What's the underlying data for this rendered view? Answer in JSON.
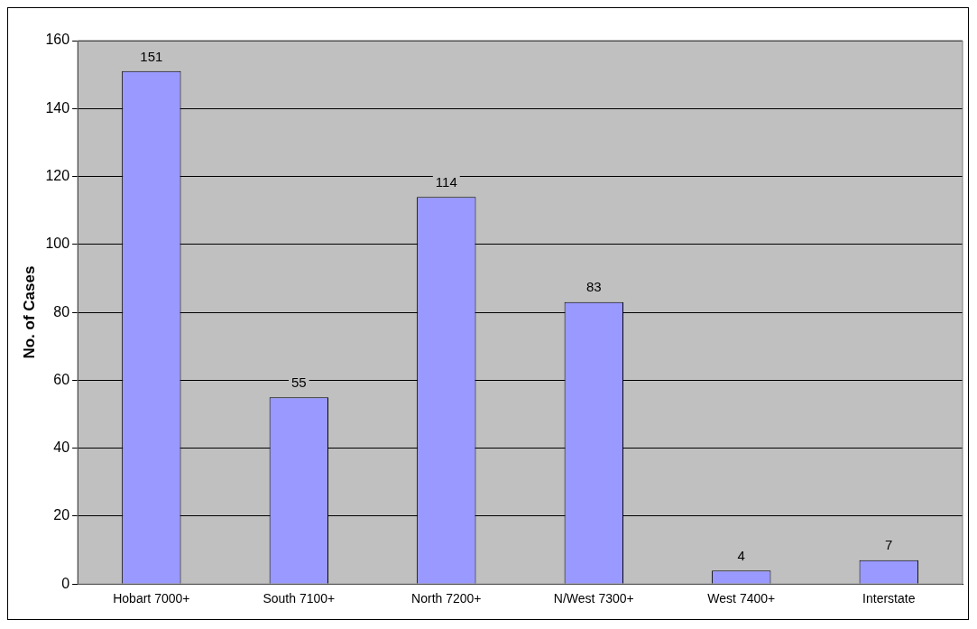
{
  "chart_data": {
    "type": "bar",
    "ylabel": "No. of Cases",
    "categories": [
      "Hobart 7000+",
      "South 7100+",
      "North 7200+",
      "N/West 7300+",
      "West 7400+",
      "Interstate"
    ],
    "values": [
      151,
      55,
      114,
      83,
      4,
      7
    ],
    "color": "#9999ff",
    "ylim": [
      0,
      160
    ],
    "yticks": [
      0,
      20,
      40,
      60,
      80,
      100,
      120,
      140,
      160
    ],
    "grid": "y",
    "data_labels": true
  }
}
